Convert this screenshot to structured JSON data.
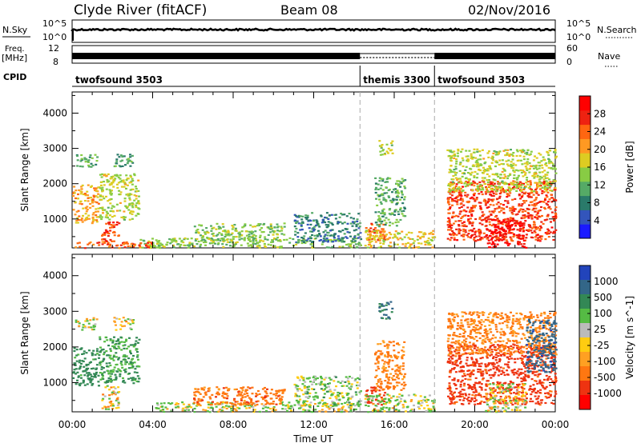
{
  "header": {
    "station": "Clyde River (fitACF)",
    "beam": "Beam 08",
    "date": "02/Nov/2016"
  },
  "strips": {
    "nsky_label": "N.Sky",
    "nsky_ticks": [
      "10^5",
      "10^0"
    ],
    "nsearch_label": "N.Search",
    "nsearch_ticks": [
      "10^5",
      "10^0"
    ],
    "freq_label_1": "Freq.",
    "freq_label_2": "[MHz]",
    "freq_ticks": [
      "12",
      "8"
    ],
    "nave_label": "Nave",
    "nave_ticks": [
      "60",
      "0"
    ],
    "cpid_label": "CPID",
    "cpid_segments": [
      {
        "name": "twofsound 3503",
        "start_h": 0.0
      },
      {
        "name": "themis 3300",
        "start_h": 14.3
      },
      {
        "name": "twofsound 3503",
        "start_h": 18.0
      }
    ]
  },
  "chart_data": [
    {
      "type": "heatmap",
      "panel": "power",
      "ylabel": "Slant Range [km]",
      "xlabel": "Time UT",
      "xlim_hours": [
        0,
        24
      ],
      "ylim": [
        180,
        4600
      ],
      "yticks": [
        1000,
        2000,
        3000,
        4000
      ],
      "xticks": [
        "00:00",
        "04:00",
        "08:00",
        "12:00",
        "16:00",
        "20:00",
        "00:00"
      ],
      "mode_changes_h": [
        14.3,
        18.0
      ],
      "colorbar": {
        "label": "Power [dB]",
        "ticks": [
          "4",
          "8",
          "12",
          "16",
          "20",
          "24",
          "28"
        ],
        "colors": [
          "#1a1aff",
          "#3355bb",
          "#2a7a6a",
          "#55aa66",
          "#88cc44",
          "#ddcc22",
          "#ff9922",
          "#ff6611",
          "#ee2211",
          "#ff0000"
        ]
      },
      "regions": [
        {
          "t": [
            0.1,
            1.2
          ],
          "r": [
            2500,
            2850
          ],
          "val": 12
        },
        {
          "t": [
            2.0,
            3.0
          ],
          "r": [
            2500,
            2850
          ],
          "val": 10
        },
        {
          "t": [
            0.0,
            1.3
          ],
          "r": [
            900,
            2000
          ],
          "val": 20
        },
        {
          "t": [
            1.3,
            3.3
          ],
          "r": [
            1000,
            2300
          ],
          "val": 16
        },
        {
          "t": [
            1.4,
            2.3
          ],
          "r": [
            250,
            950
          ],
          "val": 26
        },
        {
          "t": [
            3.3,
            4.0
          ],
          "r": [
            200,
            500
          ],
          "val": 14
        },
        {
          "t": [
            0.0,
            4.0
          ],
          "r": [
            200,
            380
          ],
          "val": 24
        },
        {
          "t": [
            4.0,
            14.3
          ],
          "r": [
            200,
            480
          ],
          "val": 14
        },
        {
          "t": [
            6.0,
            10.5
          ],
          "r": [
            400,
            900
          ],
          "val": 14
        },
        {
          "t": [
            11.0,
            14.3
          ],
          "r": [
            350,
            1200
          ],
          "val": 8
        },
        {
          "t": [
            14.5,
            15.5
          ],
          "r": [
            400,
            900
          ],
          "val": 24
        },
        {
          "t": [
            15.0,
            16.5
          ],
          "r": [
            800,
            2200
          ],
          "val": 12
        },
        {
          "t": [
            15.2,
            15.9
          ],
          "r": [
            2800,
            3300
          ],
          "val": 16
        },
        {
          "t": [
            14.5,
            18.0
          ],
          "r": [
            200,
            700
          ],
          "val": 18
        },
        {
          "t": [
            18.6,
            24.0
          ],
          "r": [
            400,
            2100
          ],
          "val": 26
        },
        {
          "t": [
            20.5,
            22.5
          ],
          "r": [
            200,
            1000
          ],
          "val": 30
        },
        {
          "t": [
            18.6,
            24.0
          ],
          "r": [
            1800,
            3000
          ],
          "val": 16
        }
      ]
    },
    {
      "type": "heatmap",
      "panel": "velocity",
      "ylabel": "Slant Range [km]",
      "xlabel": "Time UT",
      "xlim_hours": [
        0,
        24
      ],
      "ylim": [
        180,
        4600
      ],
      "yticks": [
        1000,
        2000,
        3000,
        4000
      ],
      "xticks": [
        "00:00",
        "04:00",
        "08:00",
        "12:00",
        "16:00",
        "20:00",
        "00:00"
      ],
      "mode_changes_h": [
        14.3,
        18.0
      ],
      "colorbar": {
        "label": "Velocity [m s^-1]",
        "ticks": [
          "1000",
          "500",
          "100",
          "25",
          "-25",
          "-100",
          "-500",
          "-1000"
        ],
        "colors": [
          "#2244bb",
          "#336688",
          "#338855",
          "#55bb44",
          "#bbbbbb",
          "#ffcc11",
          "#ffa022",
          "#ff7711",
          "#ee3311",
          "#ff0000"
        ]
      },
      "regions": [
        {
          "t": [
            0.1,
            1.2
          ],
          "r": [
            2500,
            2850
          ],
          "val": 25
        },
        {
          "t": [
            2.0,
            3.0
          ],
          "r": [
            2500,
            2850
          ],
          "val": 0
        },
        {
          "t": [
            0.0,
            1.3
          ],
          "r": [
            900,
            2000
          ],
          "val": 300
        },
        {
          "t": [
            1.3,
            3.3
          ],
          "r": [
            1000,
            2300
          ],
          "val": 200
        },
        {
          "t": [
            1.4,
            2.3
          ],
          "r": [
            250,
            950
          ],
          "val": 0
        },
        {
          "t": [
            4.0,
            14.3
          ],
          "r": [
            200,
            480
          ],
          "val": 50
        },
        {
          "t": [
            6.0,
            10.5
          ],
          "r": [
            400,
            900
          ],
          "val": -200
        },
        {
          "t": [
            11.0,
            14.3
          ],
          "r": [
            350,
            1200
          ],
          "val": 100
        },
        {
          "t": [
            14.5,
            15.5
          ],
          "r": [
            400,
            900
          ],
          "val": -400
        },
        {
          "t": [
            15.0,
            16.5
          ],
          "r": [
            800,
            2200
          ],
          "val": -150
        },
        {
          "t": [
            15.2,
            15.9
          ],
          "r": [
            2800,
            3300
          ],
          "val": 500
        },
        {
          "t": [
            14.5,
            18.0
          ],
          "r": [
            200,
            700
          ],
          "val": 60
        },
        {
          "t": [
            18.6,
            24.0
          ],
          "r": [
            400,
            2100
          ],
          "val": -400
        },
        {
          "t": [
            20.5,
            22.5
          ],
          "r": [
            200,
            1000
          ],
          "val": 0
        },
        {
          "t": [
            18.6,
            24.0
          ],
          "r": [
            1800,
            3000
          ],
          "val": -150
        },
        {
          "t": [
            22.5,
            24.0
          ],
          "r": [
            1300,
            2800
          ],
          "val": 700
        }
      ]
    }
  ]
}
